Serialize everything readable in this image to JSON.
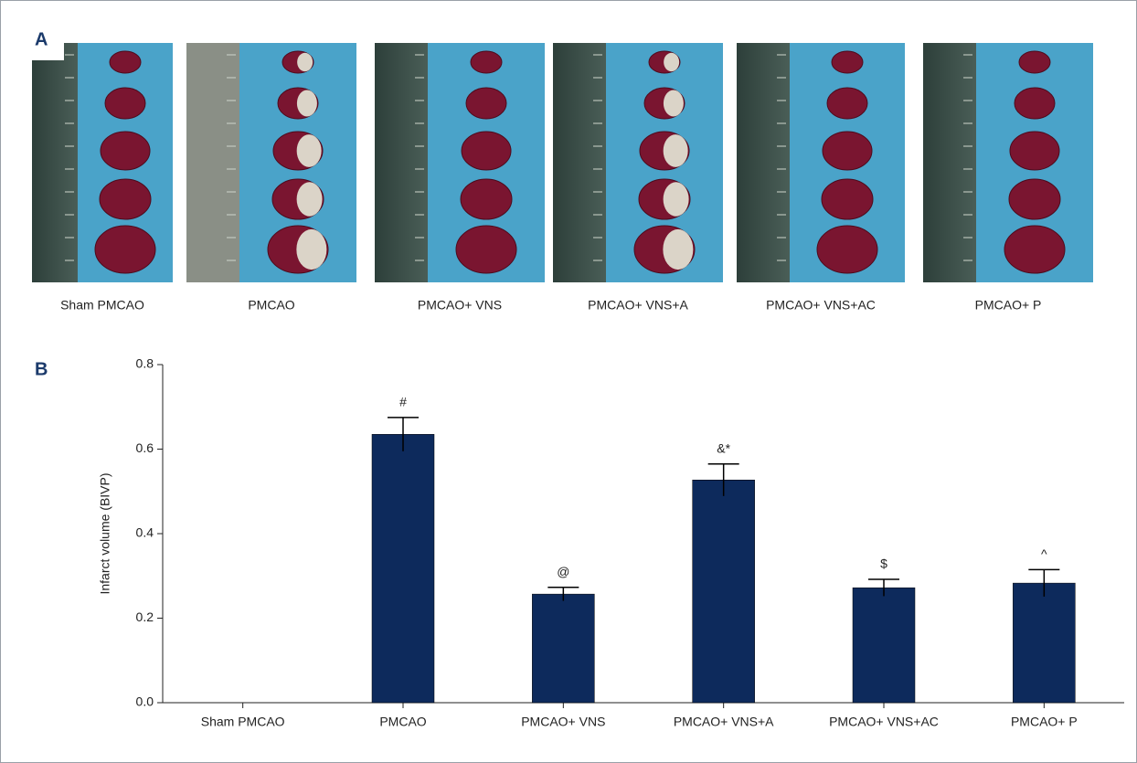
{
  "panel_a": {
    "label": "A",
    "captions": [
      "Sham PMCAO",
      "PMCAO",
      "PMCAO+ VNS",
      "PMCAO+ VNS+A",
      "PMCAO+ VNS+AC",
      "PMCAO+ P"
    ]
  },
  "chart_data": {
    "type": "bar",
    "label": "B",
    "y_label": "Infarct volume (BIVP)",
    "categories": [
      "Sham PMCAO",
      "PMCAO",
      "PMCAO+ VNS",
      "PMCAO+ VNS+A",
      "PMCAO+ VNS+AC",
      "PMCAO+ P"
    ],
    "values": [
      0,
      0.635,
      0.257,
      0.527,
      0.272,
      0.283
    ],
    "errors": [
      null,
      0.04,
      0.016,
      0.038,
      0.02,
      0.032
    ],
    "annotations": [
      null,
      "#",
      "@",
      "&*",
      "$",
      "^"
    ],
    "color": "#0d2a5c",
    "ylim": [
      0,
      0.8
    ],
    "yticks": [
      {
        "value": 0,
        "label": "0.0"
      },
      0.2,
      0.4,
      0.6,
      0.8
    ]
  }
}
